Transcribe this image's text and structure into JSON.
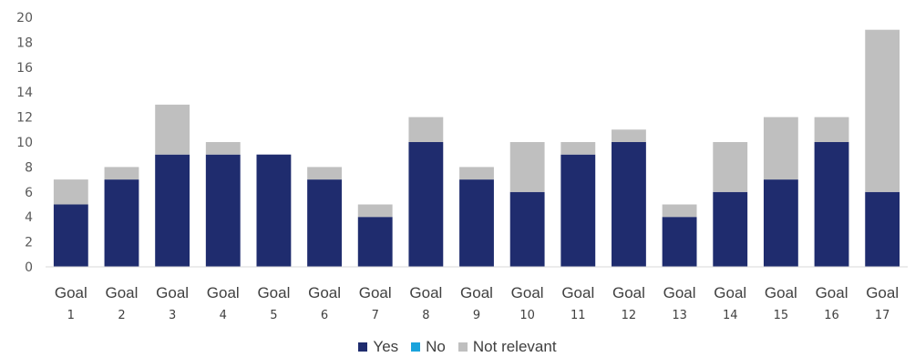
{
  "chart_data": {
    "type": "bar",
    "stacked": true,
    "categories": [
      [
        "Goal",
        "1"
      ],
      [
        "Goal",
        "2"
      ],
      [
        "Goal",
        "3"
      ],
      [
        "Goal",
        "4"
      ],
      [
        "Goal",
        "5"
      ],
      [
        "Goal",
        "6"
      ],
      [
        "Goal",
        "7"
      ],
      [
        "Goal",
        "8"
      ],
      [
        "Goal",
        "9"
      ],
      [
        "Goal",
        "10"
      ],
      [
        "Goal",
        "11"
      ],
      [
        "Goal",
        "12"
      ],
      [
        "Goal",
        "13"
      ],
      [
        "Goal",
        "14"
      ],
      [
        "Goal",
        "15"
      ],
      [
        "Goal",
        "16"
      ],
      [
        "Goal",
        "17"
      ]
    ],
    "series": [
      {
        "name": "Yes",
        "color": "#1f2c6e",
        "values": [
          5,
          7,
          9,
          9,
          9,
          7,
          4,
          10,
          7,
          6,
          9,
          10,
          4,
          6,
          7,
          10,
          6
        ]
      },
      {
        "name": "No",
        "color": "#1aa3dc",
        "values": [
          0,
          0,
          0,
          0,
          0,
          0,
          0,
          0,
          0,
          0,
          0,
          0,
          0,
          0,
          0,
          0,
          0
        ]
      },
      {
        "name": "Not relevant",
        "color": "#bfbfbf",
        "values": [
          2,
          1,
          4,
          1,
          0,
          1,
          1,
          2,
          1,
          4,
          1,
          1,
          1,
          4,
          5,
          2,
          13
        ]
      }
    ],
    "ylim": [
      0,
      20
    ],
    "yticks": [
      "0",
      "2",
      "4",
      "6",
      "8",
      "10",
      "12",
      "14",
      "16",
      "18",
      "20"
    ],
    "title": "",
    "xlabel": "",
    "ylabel": "",
    "grid": false,
    "legend_position": "bottom"
  }
}
